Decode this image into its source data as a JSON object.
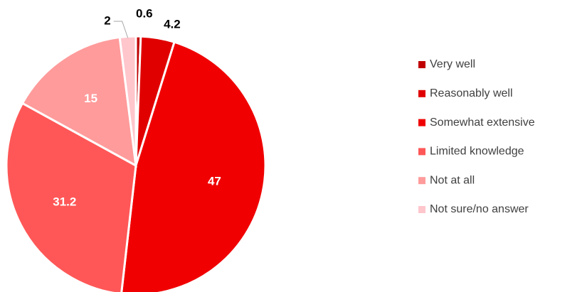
{
  "chart_data": {
    "type": "pie",
    "categories": [
      "Very well",
      "Reasonably well",
      "Somewhat extensive",
      "Limited knowledge",
      "Not at all",
      "Not sure/no answer"
    ],
    "values": [
      0.6,
      4.2,
      47,
      31.2,
      15,
      2
    ],
    "colors": [
      "#c00000",
      "#e00000",
      "#f00000",
      "#ff5757",
      "#ff9b9b",
      "#ffc6cc"
    ],
    "legend": "right"
  }
}
